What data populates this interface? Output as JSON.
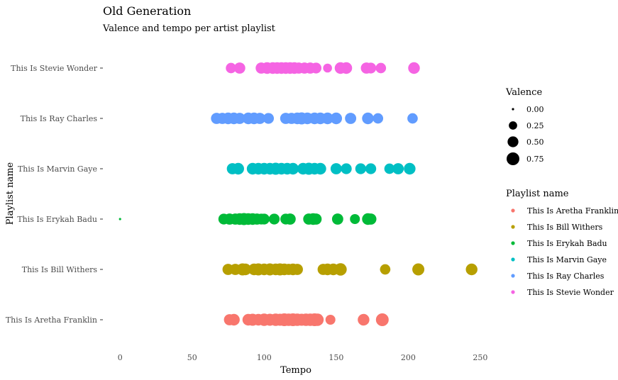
{
  "chart_data": {
    "type": "scatter",
    "title": "Old Generation",
    "subtitle": "Valence and tempo per artist playlist",
    "xlabel": "Tempo",
    "ylabel": "Playlist name",
    "xlim": [
      -7,
      253
    ],
    "x_ticks": [
      0,
      50,
      100,
      150,
      200,
      250
    ],
    "categories": [
      "This Is Aretha Franklin",
      "This Is Bill Withers",
      "This Is Erykah Badu",
      "This Is Marvin Gaye",
      "This Is Ray Charles",
      "This Is Stevie Wonder"
    ],
    "grid": false,
    "legend_position": "right",
    "size_legend": {
      "title": "Valence",
      "labels": [
        "0.00",
        "0.25",
        "0.50",
        "0.75"
      ],
      "values": [
        0.0,
        0.25,
        0.5,
        0.75
      ]
    },
    "color_legend": {
      "title": "Playlist name",
      "labels": [
        "This Is Aretha Franklin",
        "This Is Bill Withers",
        "This Is Erykah Badu",
        "This Is Marvin Gaye",
        "This Is Ray Charles",
        "This Is Stevie Wonder"
      ]
    },
    "series": [
      {
        "name": "This Is Aretha Franklin",
        "color": "#F8766D",
        "points": [
          {
            "x": 76,
            "v": 0.55
          },
          {
            "x": 79,
            "v": 0.6
          },
          {
            "x": 89,
            "v": 0.6
          },
          {
            "x": 92,
            "v": 0.65
          },
          {
            "x": 96,
            "v": 0.6
          },
          {
            "x": 100,
            "v": 0.7
          },
          {
            "x": 104,
            "v": 0.65
          },
          {
            "x": 108,
            "v": 0.7
          },
          {
            "x": 111,
            "v": 0.65
          },
          {
            "x": 114,
            "v": 0.75
          },
          {
            "x": 117,
            "v": 0.7
          },
          {
            "x": 120,
            "v": 0.75
          },
          {
            "x": 123,
            "v": 0.7
          },
          {
            "x": 126,
            "v": 0.65
          },
          {
            "x": 129,
            "v": 0.7
          },
          {
            "x": 132,
            "v": 0.7
          },
          {
            "x": 135,
            "v": 0.75
          },
          {
            "x": 137,
            "v": 0.7
          },
          {
            "x": 146,
            "v": 0.4
          },
          {
            "x": 169,
            "v": 0.6
          },
          {
            "x": 182,
            "v": 0.75
          }
        ]
      },
      {
        "name": "This Is Bill Withers",
        "color": "#B79F00",
        "points": [
          {
            "x": 75,
            "v": 0.55
          },
          {
            "x": 80,
            "v": 0.55
          },
          {
            "x": 85,
            "v": 0.65
          },
          {
            "x": 87,
            "v": 0.6
          },
          {
            "x": 93,
            "v": 0.6
          },
          {
            "x": 96,
            "v": 0.65
          },
          {
            "x": 100,
            "v": 0.6
          },
          {
            "x": 104,
            "v": 0.65
          },
          {
            "x": 108,
            "v": 0.6
          },
          {
            "x": 111,
            "v": 0.65
          },
          {
            "x": 114,
            "v": 0.6
          },
          {
            "x": 117,
            "v": 0.55
          },
          {
            "x": 120,
            "v": 0.6
          },
          {
            "x": 123,
            "v": 0.55
          },
          {
            "x": 141,
            "v": 0.55
          },
          {
            "x": 144,
            "v": 0.6
          },
          {
            "x": 148,
            "v": 0.6
          },
          {
            "x": 153,
            "v": 0.7
          },
          {
            "x": 184,
            "v": 0.45
          },
          {
            "x": 207,
            "v": 0.65
          },
          {
            "x": 244,
            "v": 0.6
          }
        ]
      },
      {
        "name": "This Is Erykah Badu",
        "color": "#00BA38",
        "points": [
          {
            "x": 0,
            "v": 0.0
          },
          {
            "x": 72,
            "v": 0.5
          },
          {
            "x": 76,
            "v": 0.55
          },
          {
            "x": 80,
            "v": 0.55
          },
          {
            "x": 83,
            "v": 0.6
          },
          {
            "x": 86,
            "v": 0.65
          },
          {
            "x": 89,
            "v": 0.6
          },
          {
            "x": 92,
            "v": 0.6
          },
          {
            "x": 95,
            "v": 0.55
          },
          {
            "x": 98,
            "v": 0.5
          },
          {
            "x": 100,
            "v": 0.5
          },
          {
            "x": 107,
            "v": 0.5
          },
          {
            "x": 115,
            "v": 0.5
          },
          {
            "x": 118,
            "v": 0.55
          },
          {
            "x": 131,
            "v": 0.55
          },
          {
            "x": 134,
            "v": 0.6
          },
          {
            "x": 136,
            "v": 0.55
          },
          {
            "x": 151,
            "v": 0.55
          },
          {
            "x": 163,
            "v": 0.4
          },
          {
            "x": 172,
            "v": 0.6
          },
          {
            "x": 174,
            "v": 0.55
          }
        ]
      },
      {
        "name": "This Is Marvin Gaye",
        "color": "#00BFC4",
        "points": [
          {
            "x": 78,
            "v": 0.55
          },
          {
            "x": 82,
            "v": 0.6
          },
          {
            "x": 92,
            "v": 0.6
          },
          {
            "x": 96,
            "v": 0.6
          },
          {
            "x": 100,
            "v": 0.6
          },
          {
            "x": 104,
            "v": 0.6
          },
          {
            "x": 108,
            "v": 0.65
          },
          {
            "x": 112,
            "v": 0.6
          },
          {
            "x": 116,
            "v": 0.6
          },
          {
            "x": 120,
            "v": 0.6
          },
          {
            "x": 127,
            "v": 0.6
          },
          {
            "x": 131,
            "v": 0.65
          },
          {
            "x": 135,
            "v": 0.6
          },
          {
            "x": 139,
            "v": 0.6
          },
          {
            "x": 150,
            "v": 0.55
          },
          {
            "x": 157,
            "v": 0.5
          },
          {
            "x": 167,
            "v": 0.5
          },
          {
            "x": 174,
            "v": 0.5
          },
          {
            "x": 187,
            "v": 0.45
          },
          {
            "x": 193,
            "v": 0.55
          },
          {
            "x": 201,
            "v": 0.6
          }
        ]
      },
      {
        "name": "This Is Ray Charles",
        "color": "#619CFF",
        "points": [
          {
            "x": 67,
            "v": 0.55
          },
          {
            "x": 71,
            "v": 0.55
          },
          {
            "x": 75,
            "v": 0.6
          },
          {
            "x": 79,
            "v": 0.6
          },
          {
            "x": 83,
            "v": 0.55
          },
          {
            "x": 89,
            "v": 0.6
          },
          {
            "x": 93,
            "v": 0.6
          },
          {
            "x": 97,
            "v": 0.55
          },
          {
            "x": 103,
            "v": 0.5
          },
          {
            "x": 115,
            "v": 0.55
          },
          {
            "x": 119,
            "v": 0.55
          },
          {
            "x": 123,
            "v": 0.6
          },
          {
            "x": 126,
            "v": 0.65
          },
          {
            "x": 130,
            "v": 0.6
          },
          {
            "x": 135,
            "v": 0.6
          },
          {
            "x": 139,
            "v": 0.6
          },
          {
            "x": 144,
            "v": 0.6
          },
          {
            "x": 150,
            "v": 0.6
          },
          {
            "x": 160,
            "v": 0.55
          },
          {
            "x": 172,
            "v": 0.6
          },
          {
            "x": 179,
            "v": 0.45
          },
          {
            "x": 203,
            "v": 0.45
          }
        ]
      },
      {
        "name": "This Is Stevie Wonder",
        "color": "#F564E3",
        "points": [
          {
            "x": 77,
            "v": 0.45
          },
          {
            "x": 83,
            "v": 0.55
          },
          {
            "x": 98,
            "v": 0.55
          },
          {
            "x": 102,
            "v": 0.6
          },
          {
            "x": 106,
            "v": 0.6
          },
          {
            "x": 109,
            "v": 0.6
          },
          {
            "x": 112,
            "v": 0.6
          },
          {
            "x": 115,
            "v": 0.6
          },
          {
            "x": 118,
            "v": 0.6
          },
          {
            "x": 121,
            "v": 0.6
          },
          {
            "x": 124,
            "v": 0.55
          },
          {
            "x": 128,
            "v": 0.55
          },
          {
            "x": 132,
            "v": 0.55
          },
          {
            "x": 136,
            "v": 0.5
          },
          {
            "x": 144,
            "v": 0.3
          },
          {
            "x": 153,
            "v": 0.6
          },
          {
            "x": 157,
            "v": 0.6
          },
          {
            "x": 171,
            "v": 0.55
          },
          {
            "x": 174,
            "v": 0.5
          },
          {
            "x": 181,
            "v": 0.45
          },
          {
            "x": 204,
            "v": 0.6
          }
        ]
      }
    ]
  }
}
